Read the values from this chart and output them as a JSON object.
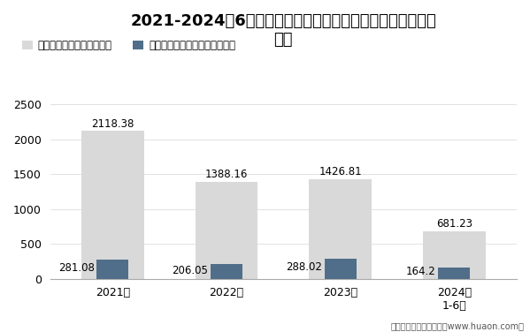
{
  "title_line1": "2021-2024年6月甘肃省房地产商品住宅及商品住宅现房销售",
  "title_line2": "面积",
  "categories": [
    "2021年",
    "2022年",
    "2023年",
    "2024年\n1-6月"
  ],
  "series1_label": "商品住宅销售面积（万㎡）",
  "series2_label": "商品住宅现房销售面积（万㎡）",
  "series1_values": [
    2118.38,
    1388.16,
    1426.81,
    681.23
  ],
  "series2_values": [
    281.08,
    206.05,
    288.02,
    164.2
  ],
  "series1_color": "#d9d9d9",
  "series2_color": "#506e8a",
  "ylim": [
    0,
    2700
  ],
  "yticks": [
    0,
    500,
    1000,
    1500,
    2000,
    2500
  ],
  "footnote": "制图：华经产业研究院（www.huaon.com）",
  "title_fontsize": 13,
  "label_fontsize": 8.5,
  "tick_fontsize": 9,
  "legend_fontsize": 8.5,
  "background_color": "#ffffff"
}
